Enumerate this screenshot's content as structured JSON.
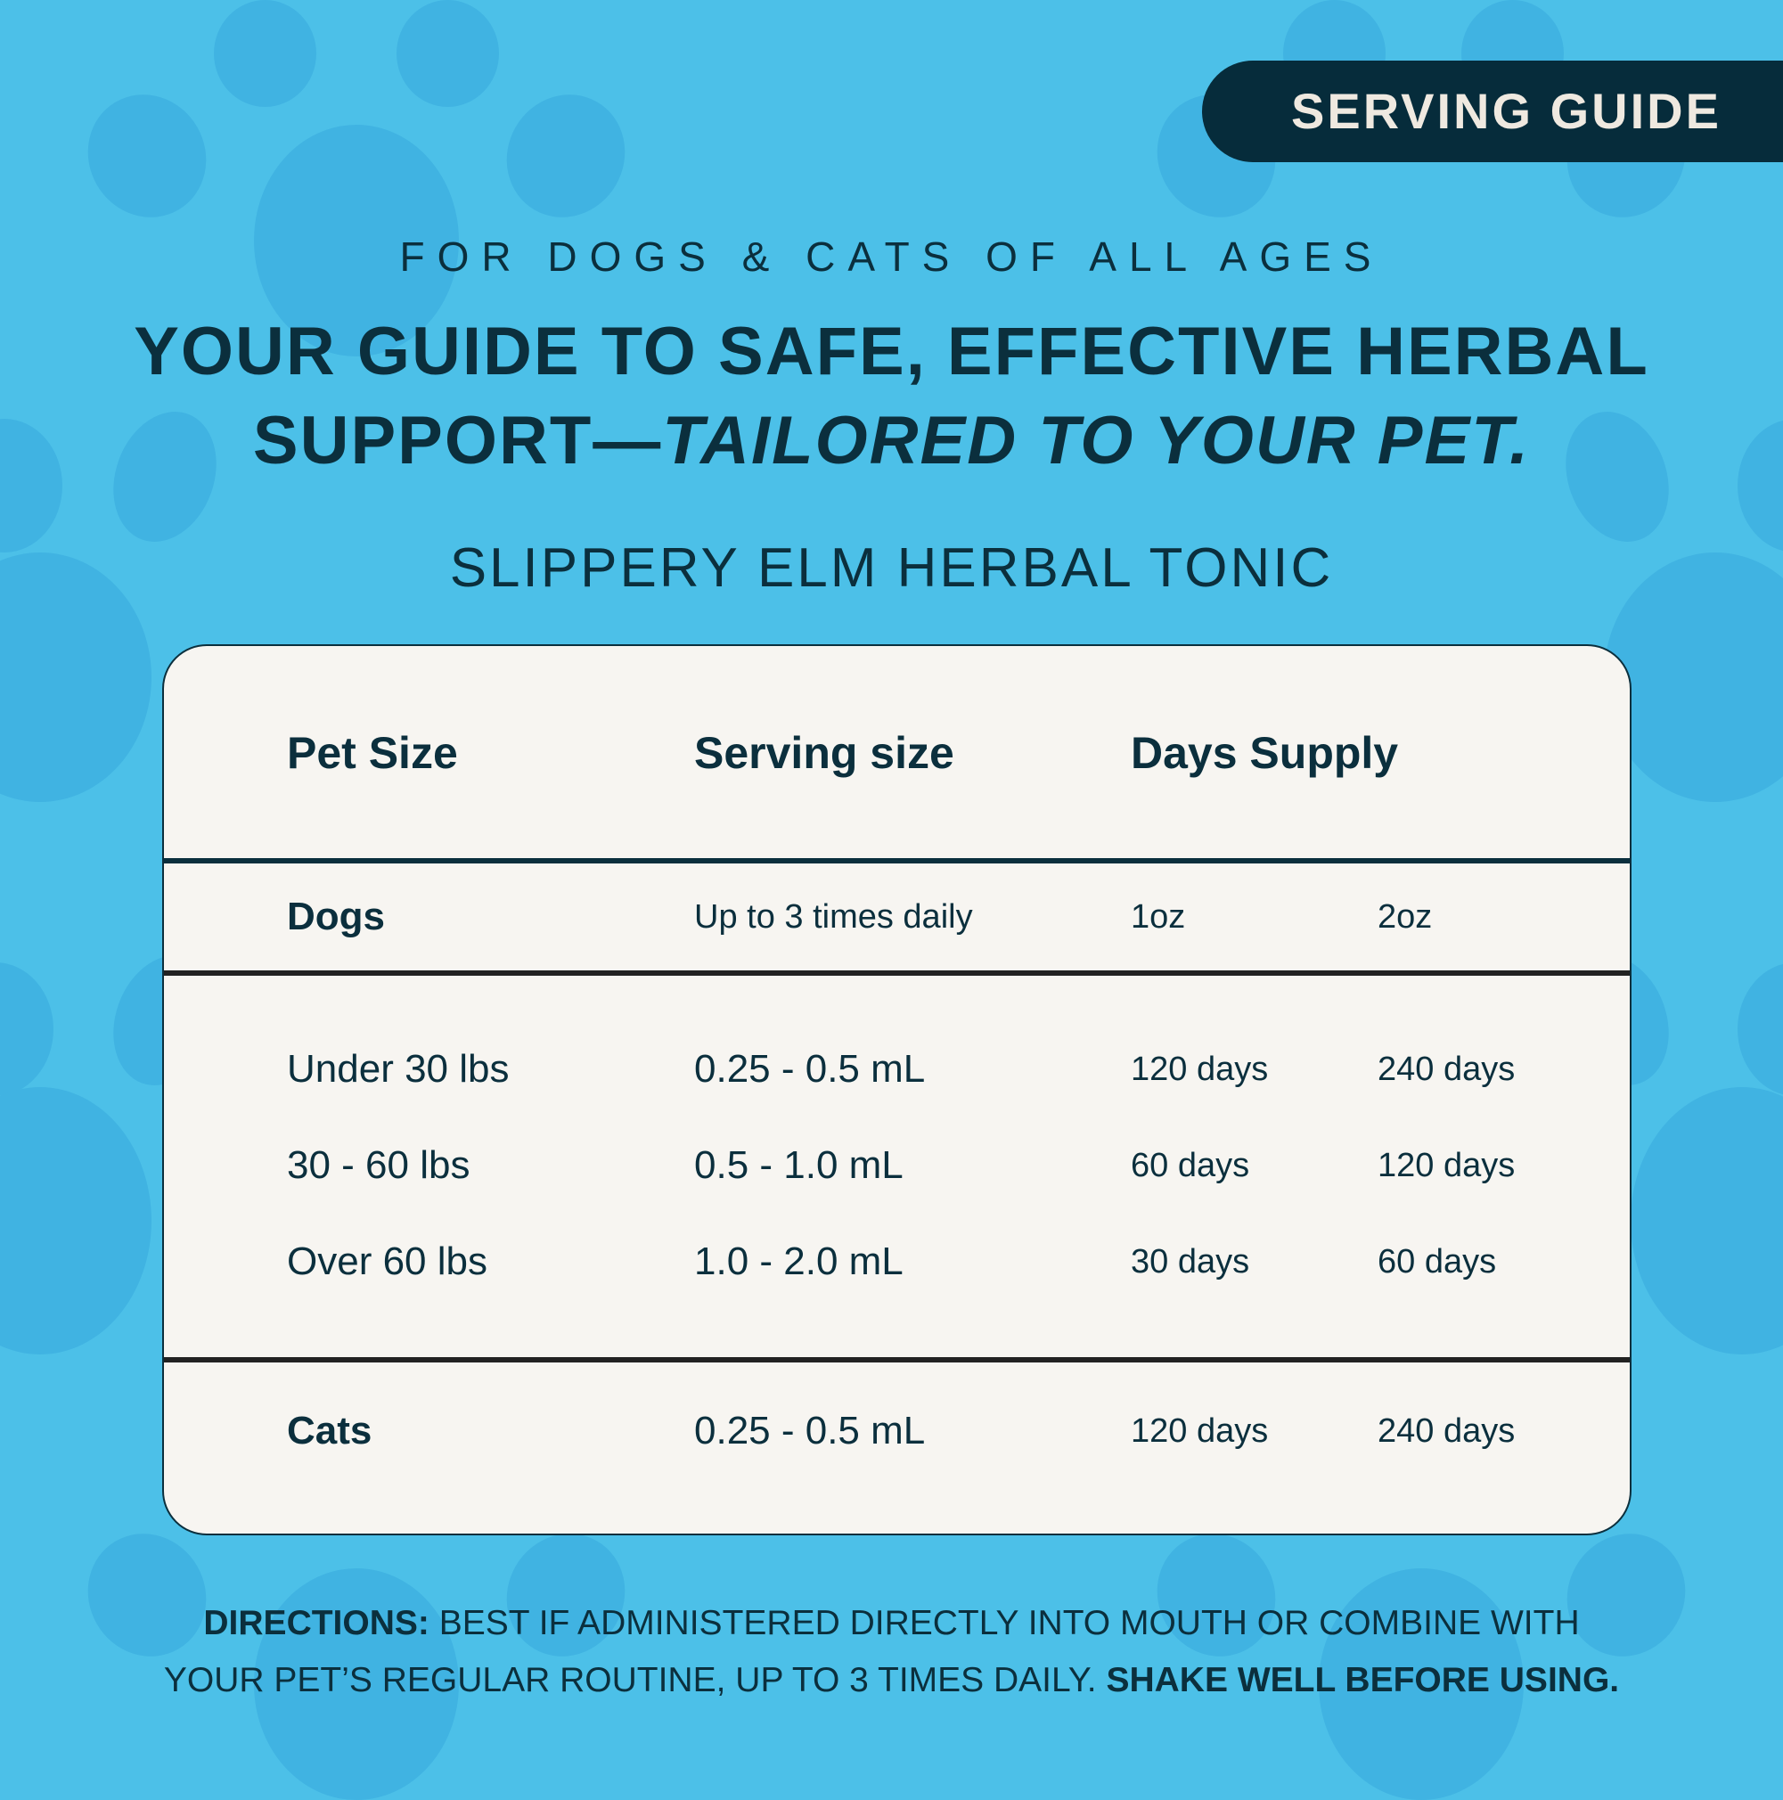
{
  "colors": {
    "background": "#4cc0e8",
    "paw_pattern": "#40b3e2",
    "text": "#0b2f3d",
    "badge": "#062c3b",
    "card": "#f7f5f1"
  },
  "badge": {
    "label": "SERVING GUIDE"
  },
  "subtitle": "FOR DOGS & CATS OF ALL AGES",
  "headline": {
    "line1": "YOUR GUIDE TO SAFE, EFFECTIVE HERBAL",
    "line2_regular": "SUPPORT—",
    "line2_italic": "TAILORED TO YOUR PET."
  },
  "product_name": "SLIPPERY ELM HERBAL TONIC",
  "table": {
    "headers": [
      "Pet Size",
      "Serving size",
      "Days Supply"
    ],
    "dogs": {
      "label": "Dogs",
      "frequency": "Up to 3 times daily",
      "size1": "1oz",
      "size2": "2oz"
    },
    "rows": [
      [
        "Under 30 lbs",
        "0.25 - 0.5 mL",
        "120 days",
        "240 days"
      ],
      [
        "30 - 60 lbs",
        "0.5 - 1.0 mL",
        "60 days",
        "120 days"
      ],
      [
        "Over 60 lbs",
        "1.0 - 2.0 mL",
        "30 days",
        "60 days"
      ]
    ],
    "cats": [
      "Cats",
      "0.25 - 0.5 mL",
      "120 days",
      "240 days"
    ]
  },
  "directions": {
    "label": "DIRECTIONS:",
    "text1": " BEST IF ADMINISTERED DIRECTLY INTO MOUTH OR COMBINE WITH",
    "text2": "YOUR PET’S REGULAR ROUTINE, UP TO 3 TIMES DAILY. ",
    "emphasis": "SHAKE WELL BEFORE USING."
  }
}
